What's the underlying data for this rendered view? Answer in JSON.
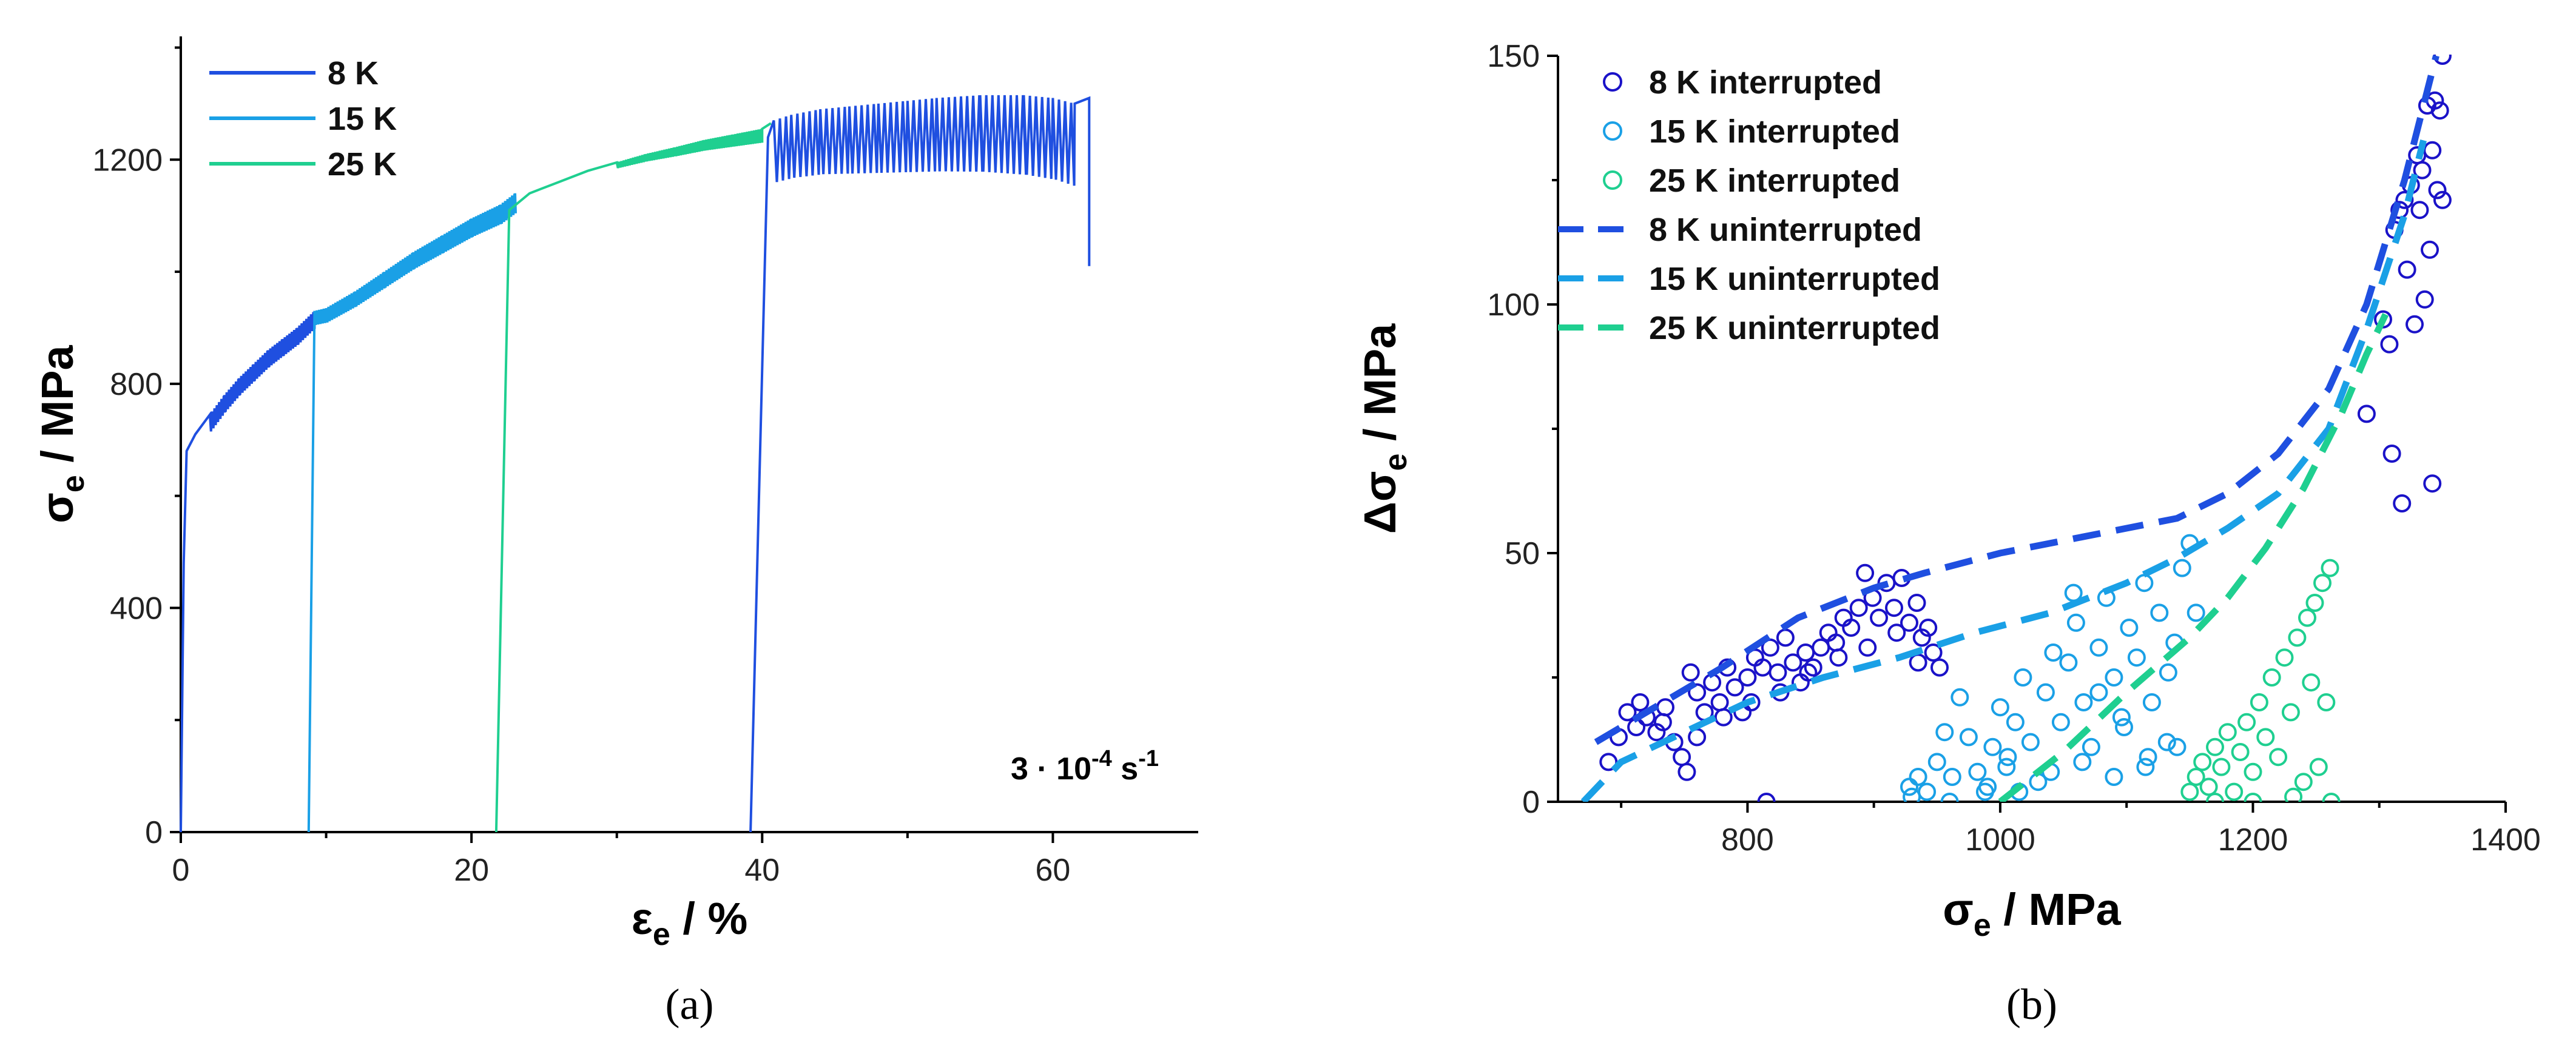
{
  "chart_data": [
    {
      "type": "line",
      "caption": "(a)",
      "xlabel": "ε",
      "xlabel_sub": "e",
      "xlabel_unit": " / %",
      "ylabel": "σ",
      "ylabel_sub": "e",
      "ylabel_unit": " / MPa",
      "xlim": [
        0,
        70
      ],
      "ylim": [
        0,
        1420
      ],
      "xticks": [
        0,
        20,
        40,
        60
      ],
      "yticks": [
        0,
        400,
        800,
        1200
      ],
      "annotation": {
        "prefix": "3 · 10",
        "exp": "-4",
        "suffix": " s",
        "suffix_exp": "-1"
      },
      "legend_position": "top-left",
      "series": [
        {
          "name": "8 K",
          "color": "#1f4fe0",
          "segments": [
            {
              "x": [
                0,
                0.2,
                0.4,
                1,
                2,
                3,
                4,
                5,
                6,
                7,
                8,
                9.2,
                9.2
              ],
              "y": [
                0,
                480,
                680,
                710,
                745,
                780,
                810,
                835,
                860,
                880,
                900,
                930,
                930
              ]
            },
            {
              "x": [
                39.2,
                40.4,
                40.8,
                42,
                44,
                46,
                48,
                50,
                52,
                55,
                58,
                60,
                61.5,
                62.5,
                62.5
              ],
              "y": [
                0,
                1240,
                1270,
                1280,
                1290,
                1295,
                1300,
                1305,
                1310,
                1315,
                1315,
                1310,
                1300,
                1310,
                1010
              ]
            }
          ],
          "serration_range": [
            [
              1.5,
              9.2
            ],
            [
              40.8,
              62.3
            ]
          ],
          "serration_amplitude": [
            [
              30,
              30
            ],
            [
              110,
              150
            ]
          ]
        },
        {
          "name": "15 K",
          "color": "#1aa0e6",
          "segments": [
            {
              "x": [
                8.8,
                9.2,
                10,
                12,
                14,
                16,
                18,
                20,
                22,
                23
              ],
              "y": [
                0,
                930,
                935,
                965,
                1000,
                1035,
                1065,
                1095,
                1120,
                1140
              ]
            }
          ],
          "serration_range": [
            [
              9.2,
              23
            ]
          ],
          "serration_amplitude": [
            [
              25,
              35
            ]
          ]
        },
        {
          "name": "25 K",
          "color": "#1fcf90",
          "segments": [
            {
              "x": [
                21.7,
                22.6,
                24,
                26,
                28,
                30,
                32,
                34,
                36,
                38,
                40,
                40.6
              ],
              "y": [
                0,
                1110,
                1140,
                1160,
                1180,
                1195,
                1210,
                1222,
                1235,
                1245,
                1255,
                1265
              ]
            }
          ],
          "serration_range": [
            [
              30,
              40.5
            ]
          ],
          "serration_amplitude": [
            [
              10,
              25
            ]
          ]
        }
      ]
    },
    {
      "type": "scatter",
      "caption": "(b)",
      "xlabel": "σ",
      "xlabel_sub": "e",
      "xlabel_unit": " / MPa",
      "ylabel": "Δσ",
      "ylabel_sub": "e",
      "ylabel_unit": " / MPa",
      "xlim": [
        650,
        1400
      ],
      "ylim": [
        0,
        150
      ],
      "xticks": [
        800,
        1000,
        1200,
        1400
      ],
      "yticks": [
        0,
        50,
        100,
        150
      ],
      "legend_position": "top-left",
      "scatter_series": [
        {
          "name": "8 K interrupted",
          "color": "#1a12c8",
          "points": [
            [
              690,
              8
            ],
            [
              698,
              13
            ],
            [
              705,
              18
            ],
            [
              712,
              15
            ],
            [
              720,
              17
            ],
            [
              728,
              14
            ],
            [
              735,
              19
            ],
            [
              742,
              12
            ],
            [
              748,
              9
            ],
            [
              752,
              6
            ],
            [
              755,
              26
            ],
            [
              760,
              22
            ],
            [
              766,
              18
            ],
            [
              772,
              24
            ],
            [
              778,
              20
            ],
            [
              784,
              27
            ],
            [
              790,
              23
            ],
            [
              796,
              18
            ],
            [
              800,
              25
            ],
            [
              806,
              29
            ],
            [
              812,
              27
            ],
            [
              818,
              31
            ],
            [
              824,
              26
            ],
            [
              830,
              33
            ],
            [
              836,
              28
            ],
            [
              842,
              24
            ],
            [
              846,
              30
            ],
            [
              852,
              27
            ],
            [
              858,
              31
            ],
            [
              864,
              34
            ],
            [
              870,
              32
            ],
            [
              876,
              37
            ],
            [
              882,
              35
            ],
            [
              888,
              39
            ],
            [
              893,
              46
            ],
            [
              899,
              41
            ],
            [
              904,
              37
            ],
            [
              910,
              44
            ],
            [
              916,
              39
            ],
            [
              922,
              45
            ],
            [
              928,
              36
            ],
            [
              934,
              40
            ],
            [
              938,
              33
            ],
            [
              943,
              35
            ],
            [
              947,
              30
            ],
            [
              952,
              27
            ],
            [
              715,
              20
            ],
            [
              733,
              16
            ],
            [
              760,
              13
            ],
            [
              781,
              17
            ],
            [
              803,
              20
            ],
            [
              826,
              22
            ],
            [
              848,
              26
            ],
            [
              872,
              29
            ],
            [
              895,
              31
            ],
            [
              918,
              34
            ],
            [
              935,
              28
            ],
            [
              815,
              0
            ],
            [
              1290,
              78
            ],
            [
              1303,
              97
            ],
            [
              1308,
              92
            ],
            [
              1312,
              115
            ],
            [
              1316,
              119
            ],
            [
              1320,
              121
            ],
            [
              1322,
              107
            ],
            [
              1325,
              124
            ],
            [
              1328,
              96
            ],
            [
              1330,
              130
            ],
            [
              1332,
              119
            ],
            [
              1334,
              127
            ],
            [
              1336,
              101
            ],
            [
              1338,
              140
            ],
            [
              1340,
              111
            ],
            [
              1342,
              131
            ],
            [
              1344,
              141
            ],
            [
              1346,
              123
            ],
            [
              1348,
              139
            ],
            [
              1350,
              150
            ],
            [
              1350,
              121
            ],
            [
              1310,
              70
            ],
            [
              1318,
              60
            ],
            [
              1342,
              64
            ]
          ]
        },
        {
          "name": "15 K interrupted",
          "color": "#1aa0e6",
          "points": [
            [
              928,
              3
            ],
            [
              935,
              5
            ],
            [
              942,
              2
            ],
            [
              950,
              8
            ],
            [
              956,
              14
            ],
            [
              962,
              5
            ],
            [
              968,
              21
            ],
            [
              975,
              13
            ],
            [
              982,
              6
            ],
            [
              988,
              2
            ],
            [
              994,
              11
            ],
            [
              1000,
              19
            ],
            [
              1006,
              9
            ],
            [
              1012,
              16
            ],
            [
              1018,
              25
            ],
            [
              1024,
              12
            ],
            [
              1030,
              4
            ],
            [
              1036,
              22
            ],
            [
              1042,
              30
            ],
            [
              1048,
              16
            ],
            [
              1054,
              28
            ],
            [
              1060,
              36
            ],
            [
              1066,
              20
            ],
            [
              1072,
              11
            ],
            [
              1078,
              31
            ],
            [
              1084,
              41
            ],
            [
              1090,
              25
            ],
            [
              1096,
              17
            ],
            [
              1102,
              35
            ],
            [
              1108,
              29
            ],
            [
              1114,
              44
            ],
            [
              1120,
              20
            ],
            [
              1126,
              38
            ],
            [
              1132,
              12
            ],
            [
              1138,
              32
            ],
            [
              1144,
              47
            ],
            [
              1150,
              52
            ],
            [
              1155,
              38
            ],
            [
              960,
              0
            ],
            [
              990,
              3
            ],
            [
              1015,
              2
            ],
            [
              1040,
              6
            ],
            [
              1065,
              8
            ],
            [
              1090,
              5
            ],
            [
              1115,
              7
            ],
            [
              1140,
              11
            ],
            [
              1058,
              42
            ],
            [
              1078,
              22
            ],
            [
              1098,
              15
            ],
            [
              1117,
              9
            ],
            [
              1133,
              26
            ],
            [
              930,
              1
            ],
            [
              1005,
              7
            ]
          ]
        },
        {
          "name": "25 K interrupted",
          "color": "#1fcf90",
          "points": [
            [
              1150,
              2
            ],
            [
              1155,
              5
            ],
            [
              1160,
              8
            ],
            [
              1165,
              3
            ],
            [
              1170,
              11
            ],
            [
              1175,
              7
            ],
            [
              1180,
              14
            ],
            [
              1185,
              2
            ],
            [
              1190,
              10
            ],
            [
              1195,
              16
            ],
            [
              1200,
              6
            ],
            [
              1205,
              20
            ],
            [
              1210,
              13
            ],
            [
              1215,
              25
            ],
            [
              1220,
              9
            ],
            [
              1225,
              29
            ],
            [
              1230,
              18
            ],
            [
              1235,
              33
            ],
            [
              1240,
              4
            ],
            [
              1243,
              37
            ],
            [
              1246,
              24
            ],
            [
              1249,
              40
            ],
            [
              1252,
              7
            ],
            [
              1255,
              44
            ],
            [
              1258,
              20
            ],
            [
              1261,
              47
            ],
            [
              1262,
              0
            ],
            [
              1170,
              0
            ],
            [
              1200,
              0
            ],
            [
              1232,
              1
            ]
          ]
        }
      ],
      "line_series": [
        {
          "name": "8 K uninterrupted",
          "color": "#1f4fe0",
          "x": [
            680,
            720,
            780,
            840,
            900,
            940,
            1000,
            1060,
            1100,
            1140,
            1180,
            1220,
            1260,
            1290,
            1320,
            1345
          ],
          "y": [
            12,
            18,
            27,
            37,
            43,
            46,
            50,
            53,
            55,
            57,
            62,
            70,
            83,
            100,
            125,
            150
          ]
        },
        {
          "name": "15 K uninterrupted",
          "color": "#1aa0e6",
          "x": [
            670,
            700,
            750,
            800,
            860,
            920,
            980,
            1040,
            1100,
            1140,
            1180,
            1220,
            1260,
            1290,
            1320,
            1335
          ],
          "y": [
            0,
            8,
            14,
            20,
            25,
            29,
            34,
            38,
            44,
            49,
            55,
            62,
            75,
            95,
            118,
            133
          ]
        },
        {
          "name": "25 K uninterrupted",
          "color": "#1fcf90",
          "x": [
            1000,
            1050,
            1100,
            1150,
            1180,
            1210,
            1240,
            1270,
            1290,
            1305
          ],
          "y": [
            0,
            10,
            22,
            33,
            41,
            51,
            63,
            78,
            90,
            98
          ]
        }
      ]
    }
  ]
}
